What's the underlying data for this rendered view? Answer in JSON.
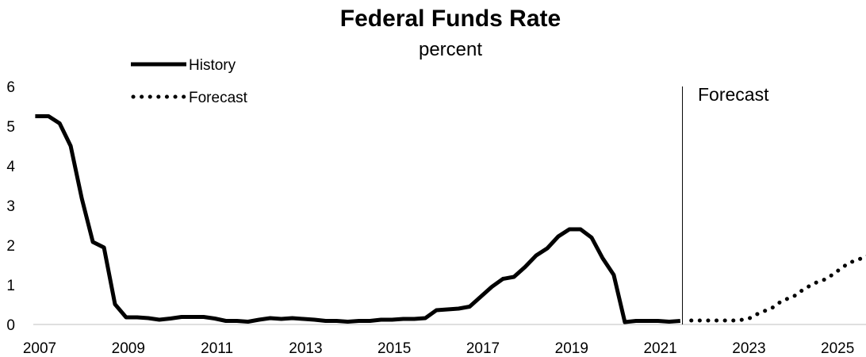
{
  "chart_data": {
    "type": "line",
    "title": "Federal Funds Rate",
    "subtitle": "percent",
    "xlabel": "",
    "ylabel": "",
    "xlim": [
      2007,
      2025.8
    ],
    "ylim": [
      0,
      6
    ],
    "y_ticks": [
      "0",
      "1",
      "2",
      "3",
      "4",
      "5",
      "6"
    ],
    "x_ticks": [
      "2007",
      "2009",
      "2011",
      "2013",
      "2015",
      "2017",
      "2019",
      "2021",
      "2023",
      "2025"
    ],
    "grid": false,
    "legend_position": "top-left",
    "forecast_start": 2021.5,
    "annotation": "Forecast",
    "series": [
      {
        "name": "History",
        "style": "solid",
        "color": "#000000",
        "x": [
          2006.9,
          2007.2,
          2007.45,
          2007.7,
          2007.95,
          2008.2,
          2008.45,
          2008.7,
          2008.95,
          2009.2,
          2009.45,
          2009.7,
          2009.95,
          2010.2,
          2010.45,
          2010.7,
          2010.95,
          2011.2,
          2011.45,
          2011.7,
          2011.95,
          2012.2,
          2012.45,
          2012.7,
          2012.95,
          2013.2,
          2013.45,
          2013.7,
          2013.95,
          2014.2,
          2014.45,
          2014.7,
          2014.95,
          2015.2,
          2015.45,
          2015.7,
          2015.95,
          2016.2,
          2016.45,
          2016.7,
          2016.95,
          2017.2,
          2017.45,
          2017.7,
          2017.95,
          2018.2,
          2018.45,
          2018.7,
          2018.95,
          2019.2,
          2019.45,
          2019.7,
          2019.95,
          2020.2,
          2020.45,
          2020.7,
          2020.95,
          2021.2,
          2021.45
        ],
        "y": [
          5.25,
          5.25,
          5.07,
          4.5,
          3.18,
          2.08,
          1.94,
          0.51,
          0.18,
          0.18,
          0.16,
          0.12,
          0.15,
          0.19,
          0.19,
          0.19,
          0.15,
          0.09,
          0.09,
          0.07,
          0.12,
          0.16,
          0.14,
          0.16,
          0.14,
          0.12,
          0.09,
          0.09,
          0.07,
          0.09,
          0.09,
          0.12,
          0.12,
          0.14,
          0.14,
          0.16,
          0.36,
          0.38,
          0.4,
          0.45,
          0.7,
          0.95,
          1.15,
          1.2,
          1.45,
          1.74,
          1.92,
          2.22,
          2.4,
          2.4,
          2.19,
          1.67,
          1.25,
          0.06,
          0.09,
          0.09,
          0.09,
          0.07,
          0.09
        ]
      },
      {
        "name": "Forecast",
        "style": "dotted",
        "color": "#000000",
        "x": [
          2021.7,
          2022.0,
          2022.25,
          2022.5,
          2022.75,
          2023.0,
          2023.25,
          2023.5,
          2023.75,
          2024.0,
          2024.25,
          2024.5,
          2024.75,
          2025.0,
          2025.25,
          2025.5,
          2025.8
        ],
        "y": [
          0.1,
          0.1,
          0.1,
          0.1,
          0.1,
          0.15,
          0.3,
          0.4,
          0.6,
          0.7,
          0.9,
          1.05,
          1.15,
          1.35,
          1.55,
          1.65,
          1.8
        ]
      }
    ]
  }
}
